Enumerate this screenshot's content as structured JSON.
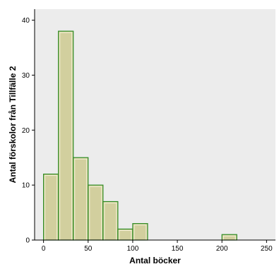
{
  "chart_data": {
    "type": "bar",
    "subtype": "histogram",
    "bins": [
      {
        "start": 0,
        "end": 16.67,
        "count": 12
      },
      {
        "start": 16.67,
        "end": 33.33,
        "count": 38
      },
      {
        "start": 33.33,
        "end": 50,
        "count": 15
      },
      {
        "start": 50,
        "end": 66.67,
        "count": 10
      },
      {
        "start": 66.67,
        "end": 83.33,
        "count": 7
      },
      {
        "start": 83.33,
        "end": 100,
        "count": 2
      },
      {
        "start": 100,
        "end": 116.67,
        "count": 3
      },
      {
        "start": 200,
        "end": 216.67,
        "count": 1
      }
    ],
    "xlabel": "Antal böcker",
    "ylabel": "Antal förskolor från Tillfälle 2",
    "xlim": [
      -10,
      260
    ],
    "ylim": [
      0,
      42
    ],
    "xticks": [
      "0",
      "50",
      "100",
      "150",
      "200",
      "250"
    ],
    "yticks": [
      "0",
      "10",
      "20",
      "30",
      "40"
    ],
    "grid": false,
    "colors": {
      "plot_bg": "#ececec",
      "bar_fill": "#d2cf9e",
      "bar_stroke": "#2e8b22",
      "bar_highlight": "#f3f1d6"
    }
  }
}
